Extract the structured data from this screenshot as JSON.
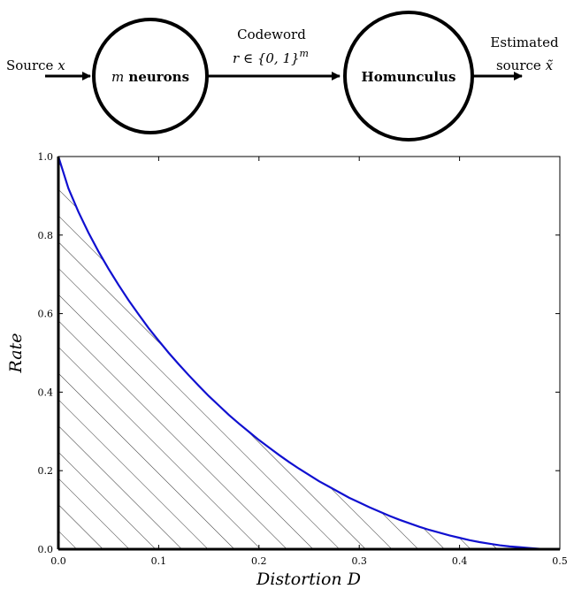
{
  "diagram": {
    "source_label": "Source ",
    "source_var": "x",
    "node1_var": "m",
    "node1_text": " neurons",
    "codeword_title": "Codeword",
    "codeword_formula": "r ∈ {0, 1}",
    "codeword_exp": "m",
    "node2_label": "Homunculus",
    "estimated_line1": "Estimated",
    "estimated_line2": "source ",
    "estimated_var": "x̃"
  },
  "chart_data": {
    "type": "area",
    "title": "",
    "xlabel": "Distortion D",
    "ylabel": "Rate",
    "xlim": [
      0.0,
      0.5
    ],
    "ylim": [
      0.0,
      1.0
    ],
    "xticks": [
      0.0,
      0.1,
      0.2,
      0.3,
      0.4,
      0.5
    ],
    "yticks": [
      0.0,
      0.2,
      0.4,
      0.6,
      0.8,
      1.0
    ],
    "xtick_labels": [
      "0.0",
      "0.1",
      "0.2",
      "0.3",
      "0.4",
      "0.5"
    ],
    "ytick_labels": [
      "0.0",
      "0.2",
      "0.4",
      "0.6",
      "0.8",
      "1.0"
    ],
    "grid": false,
    "curve_color": "#1010d0",
    "fill": "hatched region below the rate-distortion curve",
    "series": [
      {
        "x": [
          0.0,
          0.01,
          0.02,
          0.03,
          0.04,
          0.05,
          0.06,
          0.07,
          0.08,
          0.09,
          0.1,
          0.11,
          0.12,
          0.13,
          0.14,
          0.15,
          0.16,
          0.17,
          0.18,
          0.19,
          0.2,
          0.21,
          0.22,
          0.23,
          0.24,
          0.25,
          0.26,
          0.27,
          0.28,
          0.29,
          0.3,
          0.31,
          0.32,
          0.33,
          0.34,
          0.35,
          0.36,
          0.37,
          0.38,
          0.39,
          0.4,
          0.41,
          0.42,
          0.43,
          0.44,
          0.45,
          0.46,
          0.47,
          0.48,
          0.49,
          0.5
        ],
        "y": [
          1.0,
          0.919,
          0.859,
          0.806,
          0.758,
          0.714,
          0.673,
          0.634,
          0.598,
          0.563,
          0.531,
          0.5,
          0.471,
          0.443,
          0.416,
          0.39,
          0.366,
          0.342,
          0.32,
          0.299,
          0.278,
          0.259,
          0.24,
          0.222,
          0.205,
          0.189,
          0.173,
          0.159,
          0.145,
          0.131,
          0.119,
          0.107,
          0.096,
          0.085,
          0.075,
          0.066,
          0.057,
          0.049,
          0.042,
          0.035,
          0.029,
          0.023,
          0.018,
          0.014,
          0.01,
          0.007,
          0.005,
          0.003,
          0.001,
          0.0003,
          0.0
        ]
      }
    ]
  }
}
